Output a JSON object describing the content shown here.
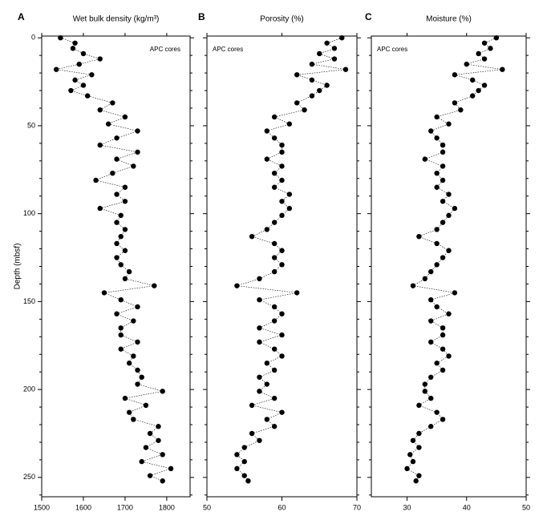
{
  "chart_data": [
    {
      "type": "line",
      "panel_label": "A",
      "title": "Wet bulk density (kg/m³)",
      "annotation": "APC cores",
      "y_label": "Depth (mbsf)",
      "color": "#000000",
      "y_inverted": true,
      "xlim": [
        1500,
        1856
      ],
      "xticks": [
        1500,
        1600,
        1700,
        1800
      ],
      "ylim": [
        -1,
        261
      ],
      "yticks": [
        0,
        50,
        100,
        150,
        200,
        250
      ],
      "yminorticks": [
        10,
        20,
        30,
        40,
        60,
        70,
        80,
        90,
        110,
        120,
        130,
        140,
        160,
        170,
        180,
        190,
        210,
        220,
        230,
        240,
        260
      ],
      "y": [
        0,
        3,
        6,
        9,
        12,
        15,
        18,
        21,
        24,
        27,
        30,
        33,
        37,
        41,
        45,
        49,
        53,
        57,
        61,
        65,
        69,
        73,
        77,
        81,
        85,
        89,
        93,
        97,
        101,
        105,
        109,
        113,
        117,
        121,
        125,
        129,
        133,
        137,
        141,
        145,
        149,
        153,
        157,
        161,
        165,
        169,
        173,
        177,
        181,
        185,
        189,
        193,
        197,
        201,
        205,
        209,
        213,
        217,
        221,
        225,
        229,
        233,
        237,
        241,
        245,
        249,
        252
      ],
      "x": [
        1545,
        1580,
        1575,
        1600,
        1640,
        1590,
        1535,
        1620,
        1580,
        1600,
        1570,
        1610,
        1670,
        1640,
        1700,
        1660,
        1730,
        1680,
        1640,
        1730,
        1680,
        1720,
        1670,
        1630,
        1700,
        1680,
        1700,
        1640,
        1690,
        1680,
        1700,
        1690,
        1680,
        1700,
        1680,
        1690,
        1710,
        1700,
        1770,
        1650,
        1690,
        1730,
        1680,
        1720,
        1690,
        1690,
        1730,
        1690,
        1720,
        1710,
        1730,
        1740,
        1730,
        1790,
        1700,
        1750,
        1710,
        1720,
        1780,
        1760,
        1780,
        1750,
        1790,
        1740,
        1810,
        1760,
        1790
      ]
    },
    {
      "type": "line",
      "panel_label": "B",
      "title": "Porosity (%)",
      "annotation": "APC cores",
      "color": "#000000",
      "y_inverted": true,
      "xlim": [
        50,
        70
      ],
      "xticks": [
        50,
        60,
        70
      ],
      "ylim": [
        -1,
        261
      ],
      "y": [
        0,
        3,
        6,
        9,
        12,
        15,
        18,
        21,
        24,
        27,
        30,
        33,
        37,
        41,
        45,
        49,
        53,
        57,
        61,
        65,
        69,
        73,
        77,
        81,
        85,
        89,
        93,
        97,
        101,
        105,
        109,
        113,
        117,
        121,
        125,
        129,
        133,
        137,
        141,
        145,
        149,
        153,
        157,
        161,
        165,
        169,
        173,
        177,
        181,
        185,
        189,
        193,
        197,
        201,
        205,
        209,
        213,
        217,
        221,
        225,
        229,
        233,
        237,
        241,
        245,
        249,
        252
      ],
      "x": [
        68,
        66,
        67,
        65,
        67,
        64,
        68.5,
        62,
        64,
        66,
        65,
        64,
        62,
        63,
        59,
        61,
        58,
        59,
        60,
        60,
        58,
        60,
        59,
        60,
        59,
        61,
        60,
        61,
        60,
        59,
        58,
        56,
        59,
        60,
        59,
        60,
        59,
        57,
        54,
        62,
        57,
        59,
        60,
        59,
        57,
        60,
        57,
        59,
        60,
        58,
        59,
        57,
        58,
        57,
        59,
        56,
        60,
        58,
        59,
        56,
        57,
        55,
        54,
        55,
        54,
        55,
        55.5
      ]
    },
    {
      "type": "line",
      "panel_label": "C",
      "title": "Moisture (%)",
      "annotation": "APC cores",
      "color": "#000000",
      "y_inverted": true,
      "xlim": [
        24,
        50
      ],
      "xticks": [
        30,
        40,
        50
      ],
      "ylim": [
        -1,
        261
      ],
      "y": [
        0,
        3,
        6,
        9,
        12,
        15,
        18,
        21,
        24,
        27,
        30,
        33,
        37,
        41,
        45,
        49,
        53,
        57,
        61,
        65,
        69,
        73,
        77,
        81,
        85,
        89,
        93,
        97,
        101,
        105,
        109,
        113,
        117,
        121,
        125,
        129,
        133,
        137,
        141,
        145,
        149,
        153,
        157,
        161,
        165,
        169,
        173,
        177,
        181,
        185,
        189,
        193,
        197,
        201,
        205,
        209,
        213,
        217,
        221,
        225,
        229,
        233,
        237,
        241,
        245,
        249,
        252
      ],
      "x": [
        45,
        43,
        44,
        42,
        43,
        40,
        46,
        38,
        41,
        43,
        42,
        41,
        38,
        39,
        35,
        37,
        34,
        35,
        36,
        36,
        33,
        36,
        35,
        36,
        35,
        37,
        36,
        38,
        37,
        36,
        35,
        32,
        35,
        37,
        36,
        35,
        34,
        33,
        31,
        38,
        34,
        35,
        37,
        34,
        36,
        36,
        34,
        36,
        37,
        35,
        36,
        34,
        33,
        33,
        34,
        32,
        35,
        36,
        34,
        32,
        31,
        32,
        30.5,
        31,
        30,
        32,
        31.5
      ]
    }
  ]
}
